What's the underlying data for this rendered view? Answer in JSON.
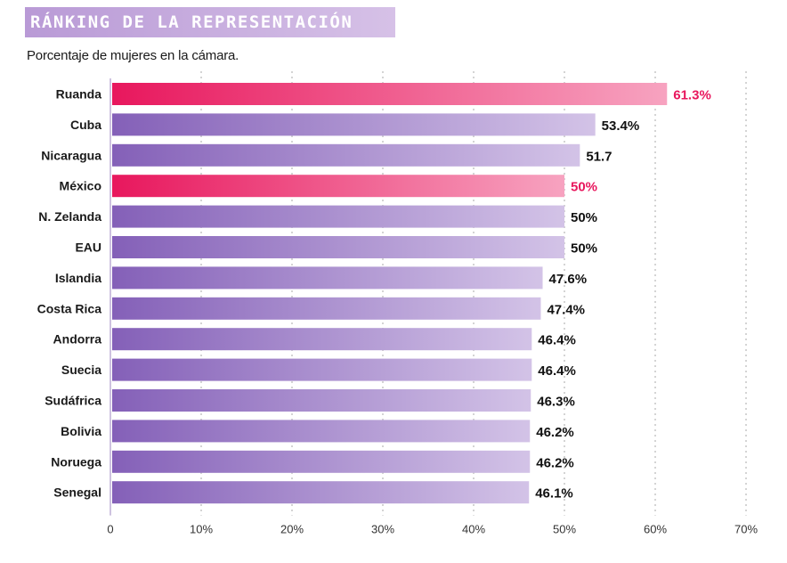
{
  "header": {
    "title": "RÁNKING DE LA REPRESENTACIÓN",
    "subtitle": "Porcentaje de mujeres en la cámara."
  },
  "colors": {
    "highlight_start": "#e8175d",
    "highlight_end": "#f7a3c0",
    "bar_start": "#8460b8",
    "bar_end": "#d3c3e7",
    "highlight_label": "#e8175d",
    "label": "#111111",
    "grid": "#c9c9c9"
  },
  "chart_data": {
    "type": "bar",
    "orientation": "horizontal",
    "categories": [
      "Ruanda",
      "Cuba",
      "Nicaragua",
      "México",
      "N. Zelanda",
      "EAU",
      "Islandia",
      "Costa Rica",
      "Andorra",
      "Suecia",
      "Sudáfrica",
      "Bolivia",
      "Noruega",
      "Senegal"
    ],
    "values": [
      61.3,
      53.4,
      51.7,
      50,
      50,
      50,
      47.6,
      47.4,
      46.4,
      46.4,
      46.3,
      46.2,
      46.2,
      46.1
    ],
    "value_labels": [
      "61.3%",
      "53.4%",
      "51.7",
      "50%",
      "50%",
      "50%",
      "47.6%",
      "47.4%",
      "46.4%",
      "46.4%",
      "46.3%",
      "46.2%",
      "46.2%",
      "46.1%"
    ],
    "highlighted": [
      "Ruanda",
      "México"
    ],
    "xlim": [
      0,
      70
    ],
    "xticks": [
      0,
      10,
      20,
      30,
      40,
      50,
      60,
      70
    ],
    "xtick_labels": [
      "0",
      "10%",
      "20%",
      "30%",
      "40%",
      "50%",
      "60%",
      "70%"
    ],
    "grid": "vertical dotted"
  }
}
